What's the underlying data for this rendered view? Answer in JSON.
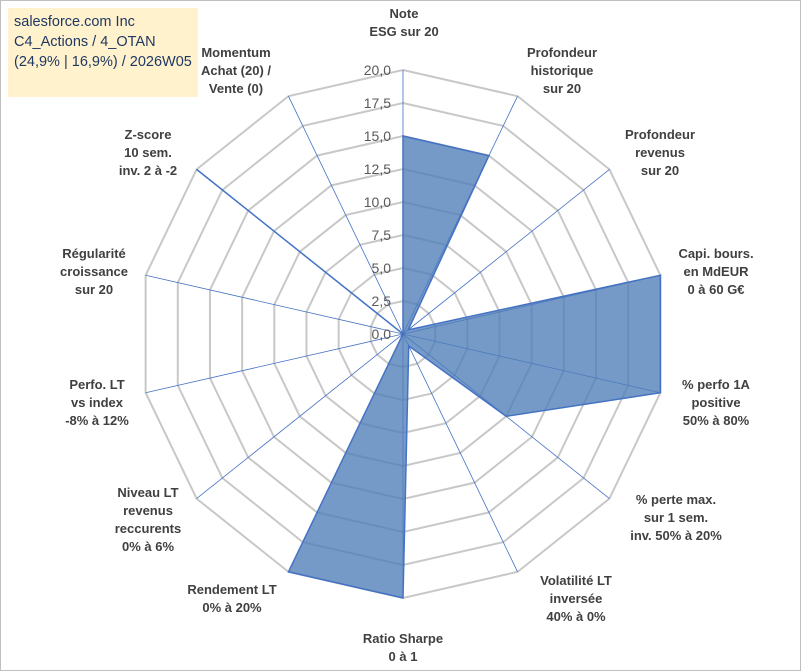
{
  "header": {
    "company": "salesforce.com Inc",
    "strategy": "C4_Actions / 4_OTAN",
    "detail": "(24,9% | 16,9%) / 2026W05"
  },
  "colors": {
    "fill": "#4f7db8",
    "stroke": "#4472c4",
    "grid": "#c8c8c8",
    "spoke": "#4472c4"
  },
  "chart_data": {
    "type": "radar",
    "r_min": 0,
    "r_max": 20,
    "ticks": [
      "0,0",
      "2,5",
      "5,0",
      "7,5",
      "10,0",
      "12,5",
      "15,0",
      "17,5",
      "20,0"
    ],
    "grid": true,
    "categories": [
      "Note ESG sur 20",
      "Profondeur historique sur 20",
      "Profondeur revenus sur 20",
      "Capi. bours. en MdEUR 0 à 60 G€",
      "% perfo 1A positive 50% à 80%",
      "% perte max. sur 1 sem. inv. 50% à 20%",
      "Volatilité LT inversée 40% à 0%",
      "Ratio Sharpe 0 à 1",
      "Rendement LT 0% à 20%",
      "Niveau LT revenus reccurents 0% à 6%",
      "Perfo. LT vs index -8% à 12%",
      "Régularité croissance sur 20",
      "Z-score 10 sem. inv. 2 à -2",
      "Momentum Achat (20) / Vente (0)"
    ],
    "label_lines": [
      [
        "Note",
        "ESG sur 20"
      ],
      [
        "Profondeur",
        "historique",
        "sur 20"
      ],
      [
        "Profondeur",
        "revenus",
        "sur 20"
      ],
      [
        "Capi. bours.",
        "en MdEUR",
        "0 à 60 G€"
      ],
      [
        "% perfo 1A",
        "positive",
        "50% à 80%"
      ],
      [
        "% perte max.",
        "sur 1 sem.",
        "inv. 50% à 20%"
      ],
      [
        "Volatilité LT",
        "inversée",
        "40% à 0%"
      ],
      [
        "Ratio Sharpe",
        "0 à 1"
      ],
      [
        "Rendement LT",
        "0% à 20%"
      ],
      [
        "Niveau LT",
        "revenus",
        "reccurents",
        "0% à 6%"
      ],
      [
        "Perfo. LT",
        "vs index",
        "-8% à 12%"
      ],
      [
        "Régularité",
        "croissance",
        "sur 20"
      ],
      [
        "Z-score",
        "10 sem.",
        "inv. 2 à -2"
      ],
      [
        "Momentum",
        "Achat (20) /",
        "Vente (0)"
      ]
    ],
    "series": [
      {
        "values": [
          15,
          15,
          0.5,
          20,
          20,
          10,
          1,
          20,
          20,
          0,
          0,
          0,
          20,
          0
        ]
      }
    ]
  }
}
